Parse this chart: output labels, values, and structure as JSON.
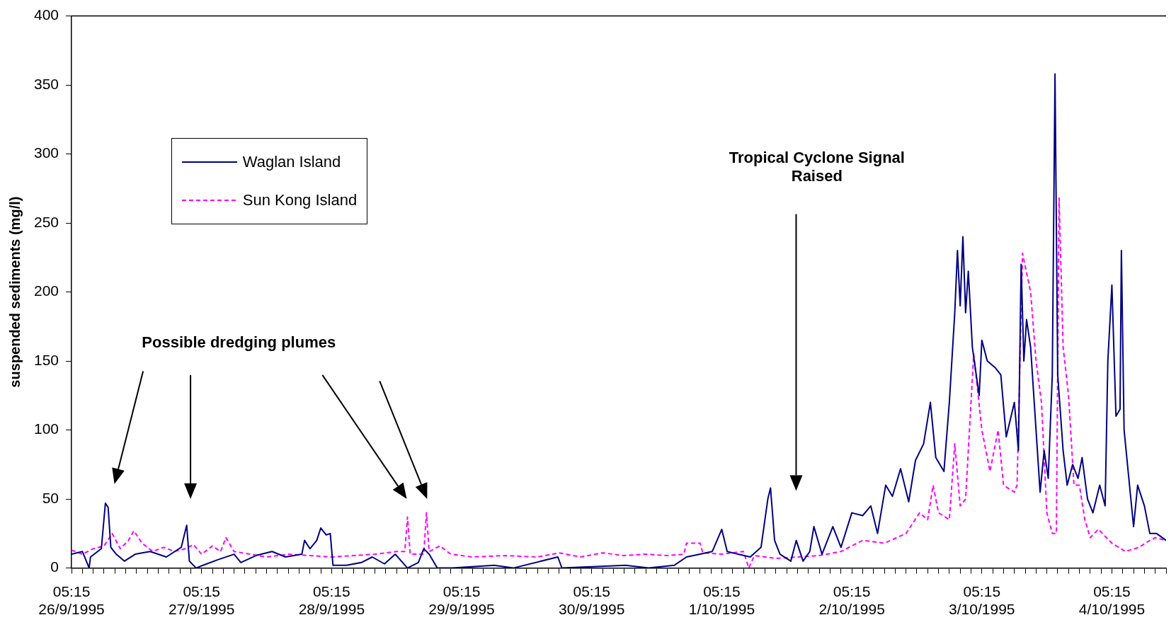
{
  "chart_data": {
    "type": "line",
    "ylabel": "suspended sediments (mg/l)",
    "annotations": [
      "Possible dredging plumes",
      "Tropical Cyclone Signal Raised"
    ],
    "xlim": [
      "1995-09-26T05:15",
      "1995-10-04T15:15"
    ],
    "ylim": [
      0,
      400
    ],
    "yticks": [
      0,
      50,
      100,
      150,
      200,
      250,
      300,
      350,
      400
    ],
    "xticks": [
      {
        "value": "1995-09-26T05:15",
        "label": "05:15\n26/9/1995"
      },
      {
        "value": "1995-09-26T07:15",
        "label": null
      },
      {
        "value": "1995-09-26T09:15",
        "label": null
      },
      {
        "value": "1995-09-26T11:15",
        "label": null
      },
      {
        "value": "1995-09-26T13:15",
        "label": null
      },
      {
        "value": "1995-09-26T15:15",
        "label": null
      },
      {
        "value": "1995-09-26T17:15",
        "label": null
      },
      {
        "value": "1995-09-26T19:15",
        "label": null
      },
      {
        "value": "1995-09-26T21:15",
        "label": null
      },
      {
        "value": "1995-09-26T23:15",
        "label": null
      },
      {
        "value": "1995-09-27T01:15",
        "label": null
      },
      {
        "value": "1995-09-27T03:15",
        "label": null
      },
      {
        "value": "1995-09-27T05:15",
        "label": "05:15\n27/9/1995"
      },
      {
        "value": "1995-09-27T07:15",
        "label": null
      },
      {
        "value": "1995-09-27T09:15",
        "label": null
      },
      {
        "value": "1995-09-27T11:15",
        "label": null
      },
      {
        "value": "1995-09-27T13:15",
        "label": null
      },
      {
        "value": "1995-09-27T15:15",
        "label": null
      },
      {
        "value": "1995-09-27T17:15",
        "label": null
      },
      {
        "value": "1995-09-27T19:15",
        "label": null
      },
      {
        "value": "1995-09-27T21:15",
        "label": null
      },
      {
        "value": "1995-09-27T23:15",
        "label": null
      },
      {
        "value": "1995-09-28T01:15",
        "label": null
      },
      {
        "value": "1995-09-28T03:15",
        "label": null
      },
      {
        "value": "1995-09-28T05:15",
        "label": "05:15\n28/9/1995"
      },
      {
        "value": "1995-09-28T07:15",
        "label": null
      },
      {
        "value": "1995-09-28T09:15",
        "label": null
      },
      {
        "value": "1995-09-28T11:15",
        "label": null
      },
      {
        "value": "1995-09-28T13:15",
        "label": null
      },
      {
        "value": "1995-09-28T15:15",
        "label": null
      },
      {
        "value": "1995-09-28T17:15",
        "label": null
      },
      {
        "value": "1995-09-28T19:15",
        "label": null
      },
      {
        "value": "1995-09-28T21:15",
        "label": null
      },
      {
        "value": "1995-09-28T23:15",
        "label": null
      },
      {
        "value": "1995-09-29T01:15",
        "label": null
      },
      {
        "value": "1995-09-29T03:15",
        "label": null
      },
      {
        "value": "1995-09-29T05:15",
        "label": "05:15\n29/9/1995"
      },
      {
        "value": "1995-09-29T07:15",
        "label": null
      },
      {
        "value": "1995-09-29T09:15",
        "label": null
      },
      {
        "value": "1995-09-29T11:15",
        "label": null
      },
      {
        "value": "1995-09-29T13:15",
        "label": null
      },
      {
        "value": "1995-09-29T15:15",
        "label": null
      },
      {
        "value": "1995-09-29T17:15",
        "label": null
      },
      {
        "value": "1995-09-29T19:15",
        "label": null
      },
      {
        "value": "1995-09-29T21:15",
        "label": null
      },
      {
        "value": "1995-09-29T23:15",
        "label": null
      },
      {
        "value": "1995-09-30T01:15",
        "label": null
      },
      {
        "value": "1995-09-30T03:15",
        "label": null
      },
      {
        "value": "1995-09-30T05:15",
        "label": "05:15\n30/9/1995"
      },
      {
        "value": "1995-09-30T07:15",
        "label": null
      },
      {
        "value": "1995-09-30T09:15",
        "label": null
      },
      {
        "value": "1995-09-30T11:15",
        "label": null
      },
      {
        "value": "1995-09-30T13:15",
        "label": null
      },
      {
        "value": "1995-09-30T15:15",
        "label": null
      },
      {
        "value": "1995-09-30T17:15",
        "label": null
      },
      {
        "value": "1995-09-30T19:15",
        "label": null
      },
      {
        "value": "1995-09-30T21:15",
        "label": null
      },
      {
        "value": "1995-09-30T23:15",
        "label": null
      },
      {
        "value": "1995-10-01T01:15",
        "label": null
      },
      {
        "value": "1995-10-01T03:15",
        "label": null
      },
      {
        "value": "1995-10-01T05:15",
        "label": "05:15\n1/10/1995"
      },
      {
        "value": "1995-10-01T07:15",
        "label": null
      },
      {
        "value": "1995-10-01T09:15",
        "label": null
      },
      {
        "value": "1995-10-01T11:15",
        "label": null
      },
      {
        "value": "1995-10-01T13:15",
        "label": null
      },
      {
        "value": "1995-10-01T15:15",
        "label": null
      },
      {
        "value": "1995-10-01T17:15",
        "label": null
      },
      {
        "value": "1995-10-01T19:15",
        "label": null
      },
      {
        "value": "1995-10-01T21:15",
        "label": null
      },
      {
        "value": "1995-10-01T23:15",
        "label": null
      },
      {
        "value": "1995-10-02T01:15",
        "label": null
      },
      {
        "value": "1995-10-02T03:15",
        "label": null
      },
      {
        "value": "1995-10-02T05:15",
        "label": "05:15\n2/10/1995"
      },
      {
        "value": "1995-10-02T07:15",
        "label": null
      },
      {
        "value": "1995-10-02T09:15",
        "label": null
      },
      {
        "value": "1995-10-02T11:15",
        "label": null
      },
      {
        "value": "1995-10-02T13:15",
        "label": null
      },
      {
        "value": "1995-10-02T15:15",
        "label": null
      },
      {
        "value": "1995-10-02T17:15",
        "label": null
      },
      {
        "value": "1995-10-02T19:15",
        "label": null
      },
      {
        "value": "1995-10-02T21:15",
        "label": null
      },
      {
        "value": "1995-10-02T23:15",
        "label": null
      },
      {
        "value": "1995-10-03T01:15",
        "label": null
      },
      {
        "value": "1995-10-03T03:15",
        "label": null
      },
      {
        "value": "1995-10-03T05:15",
        "label": "05:15\n3/10/1995"
      },
      {
        "value": "1995-10-03T07:15",
        "label": null
      },
      {
        "value": "1995-10-03T09:15",
        "label": null
      },
      {
        "value": "1995-10-03T11:15",
        "label": null
      },
      {
        "value": "1995-10-03T13:15",
        "label": null
      },
      {
        "value": "1995-10-03T15:15",
        "label": null
      },
      {
        "value": "1995-10-03T17:15",
        "label": null
      },
      {
        "value": "1995-10-03T19:15",
        "label": null
      },
      {
        "value": "1995-10-03T21:15",
        "label": null
      },
      {
        "value": "1995-10-03T23:15",
        "label": null
      },
      {
        "value": "1995-10-04T01:15",
        "label": null
      },
      {
        "value": "1995-10-04T03:15",
        "label": null
      },
      {
        "value": "1995-10-04T05:15",
        "label": "05:15\n4/10/1995"
      },
      {
        "value": "1995-10-04T07:15",
        "label": null
      },
      {
        "value": "1995-10-04T09:15",
        "label": null
      },
      {
        "value": "1995-10-04T11:15",
        "label": null
      },
      {
        "value": "1995-10-04T13:15",
        "label": null
      },
      {
        "value": "1995-10-04T15:15",
        "label": null
      }
    ],
    "grid": false,
    "legend": "top left",
    "marker": "none",
    "series": [
      {
        "name": "Waglan Island",
        "color": "#000080",
        "line_style": "solid",
        "x": [
          "1995-09-26T05:15",
          "1995-09-26T07:15",
          "1995-09-26T08:30",
          "1995-09-26T08:45",
          "1995-09-26T10:45",
          "1995-09-26T11:30",
          "1995-09-26T12:00",
          "1995-09-26T12:30",
          "1995-09-26T13:30",
          "1995-09-26T15:00",
          "1995-09-26T17:00",
          "1995-09-26T19:45",
          "1995-09-26T22:45",
          "1995-09-27T01:30",
          "1995-09-27T02:30",
          "1995-09-27T03:00",
          "1995-09-27T04:15",
          "1995-09-27T05:30",
          "1995-09-27T08:15",
          "1995-09-27T11:15",
          "1995-09-27T12:30",
          "1995-09-27T15:15",
          "1995-09-27T18:15",
          "1995-09-27T20:45",
          "1995-09-27T23:45",
          "1995-09-28T00:15",
          "1995-09-28T01:15",
          "1995-09-28T02:30",
          "1995-09-28T03:15",
          "1995-09-28T04:15",
          "1995-09-28T05:00",
          "1995-09-28T05:30",
          "1995-09-28T08:00",
          "1995-09-28T10:45",
          "1995-09-28T12:45",
          "1995-09-28T15:00",
          "1995-09-28T17:00",
          "1995-09-28T19:15",
          "1995-09-28T21:15",
          "1995-09-28T22:15",
          "1995-09-28T23:15",
          "1995-09-29T00:45",
          "1995-09-29T03:30",
          "1995-09-29T11:15",
          "1995-09-29T14:45",
          "1995-09-29T23:00",
          "1995-09-29T23:45",
          "1995-09-30T11:30",
          "1995-09-30T15:45",
          "1995-09-30T20:30",
          "1995-09-30T22:45",
          "1995-10-01T01:15",
          "1995-10-01T03:30",
          "1995-10-01T05:15",
          "1995-10-01T06:15",
          "1995-10-01T08:15",
          "1995-10-01T10:30",
          "1995-10-01T12:30",
          "1995-10-01T13:45",
          "1995-10-01T14:15",
          "1995-10-01T15:00",
          "1995-10-01T16:00",
          "1995-10-01T18:00",
          "1995-10-01T19:00",
          "1995-10-01T20:15",
          "1995-10-01T21:30",
          "1995-10-01T22:15",
          "1995-10-01T23:45",
          "1995-10-02T01:45",
          "1995-10-02T03:15",
          "1995-10-02T05:15",
          "1995-10-02T07:15",
          "1995-10-02T08:45",
          "1995-10-02T10:00",
          "1995-10-02T11:30",
          "1995-10-02T12:45",
          "1995-10-02T14:15",
          "1995-10-02T15:45",
          "1995-10-02T17:00",
          "1995-10-02T18:30",
          "1995-10-02T19:45",
          "1995-10-02T20:45",
          "1995-10-02T22:15",
          "1995-10-02T23:15",
          "1995-10-03T00:15",
          "1995-10-03T00:45",
          "1995-10-03T01:15",
          "1995-10-03T01:45",
          "1995-10-03T02:15",
          "1995-10-03T02:45",
          "1995-10-03T03:30",
          "1995-10-03T04:45",
          "1995-10-03T05:15",
          "1995-10-03T06:15",
          "1995-10-03T07:45",
          "1995-10-03T08:45",
          "1995-10-03T09:45",
          "1995-10-03T11:15",
          "1995-10-03T12:00",
          "1995-10-03T12:30",
          "1995-10-03T13:00",
          "1995-10-03T13:30",
          "1995-10-03T14:15",
          "1995-10-03T15:15",
          "1995-10-03T16:00",
          "1995-10-03T16:45",
          "1995-10-03T17:30",
          "1995-10-03T18:15",
          "1995-10-03T18:45",
          "1995-10-03T19:15",
          "1995-10-03T20:15",
          "1995-10-03T21:00",
          "1995-10-03T22:00",
          "1995-10-03T23:00",
          "1995-10-03T23:45",
          "1995-10-04T00:45",
          "1995-10-04T01:45",
          "1995-10-04T03:00",
          "1995-10-04T04:00",
          "1995-10-04T04:30",
          "1995-10-04T05:15",
          "1995-10-04T06:00",
          "1995-10-04T06:45",
          "1995-10-04T07:00",
          "1995-10-04T07:30",
          "1995-10-04T08:30",
          "1995-10-04T09:15",
          "1995-10-04T10:00",
          "1995-10-04T11:15",
          "1995-10-04T12:15",
          "1995-10-04T13:30",
          "1995-10-04T15:15"
        ],
        "values": [
          10,
          12,
          0,
          8,
          14,
          47,
          44,
          15,
          10,
          5,
          10,
          12,
          8,
          15,
          31,
          5,
          0,
          2,
          6,
          10,
          4,
          9,
          12,
          8,
          10,
          20,
          14,
          20,
          29,
          24,
          25,
          2,
          2,
          4,
          8,
          3,
          10,
          0,
          4,
          14,
          10,
          0,
          0,
          2,
          0,
          8,
          0,
          2,
          0,
          2,
          8,
          10,
          12,
          28,
          12,
          10,
          8,
          15,
          50,
          58,
          20,
          10,
          5,
          20,
          5,
          12,
          30,
          10,
          30,
          15,
          40,
          38,
          45,
          25,
          60,
          52,
          72,
          48,
          78,
          90,
          120,
          80,
          70,
          120,
          185,
          230,
          190,
          240,
          185,
          215,
          160,
          125,
          165,
          150,
          145,
          140,
          95,
          120,
          85,
          220,
          150,
          180,
          160,
          100,
          55,
          85,
          65,
          140,
          358,
          140,
          85,
          60,
          75,
          65,
          80,
          50,
          40,
          60,
          45,
          150,
          205,
          110,
          115,
          230,
          100,
          60,
          30,
          60,
          45,
          25,
          25,
          20
        ]
      },
      {
        "name": "Sun Kong Island",
        "color": "#ff00ff",
        "line_style": "dashed",
        "x": [
          "1995-09-26T05:15",
          "1995-09-26T07:15",
          "1995-09-26T09:15",
          "1995-09-26T11:15",
          "1995-09-26T12:45",
          "1995-09-26T14:15",
          "1995-09-26T15:45",
          "1995-09-26T16:45",
          "1995-09-26T18:15",
          "1995-09-26T20:15",
          "1995-09-26T22:15",
          "1995-09-27T00:15",
          "1995-09-27T02:15",
          "1995-09-27T03:45",
          "1995-09-27T05:15",
          "1995-09-27T07:15",
          "1995-09-27T08:45",
          "1995-09-27T09:45",
          "1995-09-27T11:15",
          "1995-09-27T14:15",
          "1995-09-27T17:15",
          "1995-09-27T21:15",
          "1995-09-28T01:15",
          "1995-09-28T05:15",
          "1995-09-28T09:15",
          "1995-09-28T13:15",
          "1995-09-28T17:15",
          "1995-09-28T18:45",
          "1995-09-28T19:15",
          "1995-09-28T19:45",
          "1995-09-28T22:15",
          "1995-09-28T22:45",
          "1995-09-28T23:15",
          "1995-09-29T01:15",
          "1995-09-29T03:15",
          "1995-09-29T07:15",
          "1995-09-29T13:15",
          "1995-09-29T19:15",
          "1995-09-29T23:15",
          "1995-09-30T03:15",
          "1995-09-30T07:15",
          "1995-09-30T11:15",
          "1995-09-30T15:15",
          "1995-09-30T19:15",
          "1995-09-30T22:15",
          "1995-09-30T22:45",
          "1995-10-01T01:15",
          "1995-10-01T01:45",
          "1995-10-01T05:15",
          "1995-10-01T09:15",
          "1995-10-01T10:15",
          "1995-10-01T11:15",
          "1995-10-01T15:15",
          "1995-10-01T19:15",
          "1995-10-01T23:15",
          "1995-10-02T03:15",
          "1995-10-02T07:15",
          "1995-10-02T11:15",
          "1995-10-02T15:15",
          "1995-10-02T17:45",
          "1995-10-02T19:15",
          "1995-10-02T20:15",
          "1995-10-02T21:15",
          "1995-10-02T23:15",
          "1995-10-03T00:15",
          "1995-10-03T01:15",
          "1995-10-03T02:15",
          "1995-10-03T03:45",
          "1995-10-03T05:15",
          "1995-10-03T06:45",
          "1995-10-03T08:15",
          "1995-10-03T09:15",
          "1995-10-03T11:15",
          "1995-10-03T11:45",
          "1995-10-03T12:45",
          "1995-10-03T14:15",
          "1995-10-03T15:15",
          "1995-10-03T16:15",
          "1995-10-03T17:15",
          "1995-10-03T18:15",
          "1995-10-03T19:00",
          "1995-10-03T19:30",
          "1995-10-03T20:15",
          "1995-10-03T21:15",
          "1995-10-03T22:15",
          "1995-10-03T23:15",
          "1995-10-04T00:15",
          "1995-10-04T01:15",
          "1995-10-04T02:45",
          "1995-10-04T05:15",
          "1995-10-04T07:45",
          "1995-10-04T10:15",
          "1995-10-04T12:15",
          "1995-10-04T13:15",
          "1995-10-04T15:15"
        ],
        "values": [
          13,
          10,
          14,
          16,
          25,
          14,
          20,
          27,
          18,
          12,
          15,
          12,
          14,
          17,
          10,
          16,
          12,
          22,
          12,
          10,
          8,
          10,
          9,
          8,
          9,
          10,
          12,
          12,
          37,
          10,
          10,
          40,
          12,
          16,
          10,
          8,
          9,
          8,
          11,
          8,
          11,
          9,
          10,
          9,
          10,
          18,
          18,
          11,
          10,
          12,
          0,
          9,
          7,
          8,
          9,
          12,
          20,
          18,
          25,
          40,
          35,
          60,
          40,
          35,
          90,
          45,
          50,
          155,
          100,
          70,
          100,
          60,
          55,
          60,
          228,
          200,
          150,
          120,
          40,
          25,
          25,
          268,
          160,
          125,
          60,
          60,
          35,
          22,
          28,
          18,
          12,
          15,
          20,
          22,
          20
        ]
      }
    ]
  }
}
